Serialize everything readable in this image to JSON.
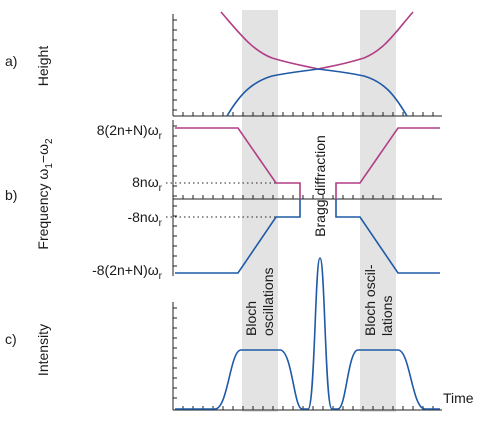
{
  "panels": {
    "a": {
      "letter": "a)",
      "ylabel": "Height"
    },
    "b": {
      "letter": "b)",
      "ylabel_text": "Frequency ",
      "ylabel_omega1": "ω",
      "ylabel_sub1": "1",
      "ylabel_dash": "−",
      "ylabel_omega2": "ω",
      "ylabel_sub2": "2",
      "levels": [
        {
          "main": "8(2n+N)ω",
          "sub": "r"
        },
        {
          "main": "8nω",
          "sub": "r"
        },
        {
          "main": "-8nω",
          "sub": "r"
        },
        {
          "main": "-8(2n+N)ω",
          "sub": "r"
        }
      ]
    },
    "c": {
      "letter": "c)",
      "ylabel": "Intensity",
      "xlabel": "Time"
    }
  },
  "annotations": {
    "bragg": "Bragg diffraction",
    "bloch_left_line1": "Bloch",
    "bloch_left_line2": "oscillations",
    "bloch_right_line1": "Bloch oscil-",
    "bloch_right_line2": "lations"
  },
  "colors": {
    "pink": "#b13e86",
    "blue": "#1f5aa6",
    "shade": "#e3e3e3"
  }
}
